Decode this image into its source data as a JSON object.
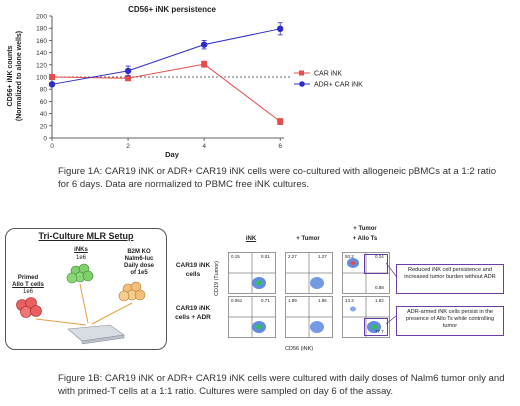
{
  "chart_data": {
    "type": "line",
    "title": "CD56+ iNK persistence",
    "xlabel": "Day",
    "ylabel_line1": "CD56+ iNK counts",
    "ylabel_line2": "(Normalized to alone wells)",
    "x": [
      0,
      2,
      4,
      6
    ],
    "xticks": [
      0,
      2,
      4,
      6
    ],
    "xlim": [
      0,
      6.1
    ],
    "ylim": [
      0,
      200
    ],
    "yticks": [
      0,
      20,
      40,
      60,
      80,
      100,
      120,
      140,
      160,
      180,
      200
    ],
    "reference_line": 100,
    "legend_position": "right",
    "series": [
      {
        "name": "CAR iNK",
        "values": [
          100,
          98,
          121,
          27
        ],
        "errors": [
          3,
          4,
          5,
          5
        ],
        "color": "#e74c4c",
        "marker": "square"
      },
      {
        "name": "ADR+ CAR iNK",
        "values": [
          88,
          110,
          153,
          179
        ],
        "errors": [
          3,
          8,
          7,
          10
        ],
        "color": "#2c2ccc",
        "marker": "circle"
      }
    ]
  },
  "captions": {
    "fig1a": "Figure 1A: CAR19 iNK or ADR+ CAR19 iNK cells were co-cultured with allogeneic pBMCs at a 1:2 ratio for 6 days. Data are normalized to PBMC free iNK cultures.",
    "fig1b": "Figure 1B: CAR19 iNK or ADR+ CAR19 iNK cells were cultured with daily doses of Nalm6 tumor only and with primed-T cells at a 1:1 ratio. Cultures were sampled on day 6 of the assay."
  },
  "setup": {
    "title": "Tri-Culture MLR Setup",
    "inks_label": "iNKs",
    "inks_count": "1e6",
    "tumor_line1": "B2M KO",
    "tumor_line2": "Nalm6-luc",
    "tumor_line3": "Daily dose",
    "tumor_line4": "of 1e5",
    "tcells_line1": "Primed",
    "tcells_line2": "Allo T cells",
    "tcells_count": "1e6"
  },
  "flow": {
    "col_ink": "iNK",
    "col_tumor": "+ Tumor",
    "col_allo_top": "+ Tumor",
    "col_allo_bottom": "+ Allo Ts",
    "row1_line1": "CAR19 iNK",
    "row1_line2": "cells",
    "row2_line1": "CAR19 iNK",
    "row2_line2": "cells + ADR",
    "yaxis": "CD19 (Tumor)",
    "xaxis": "CD56 (iNK)",
    "note1": "Reduced iNK cell persistence and increased tumor burden without ADR",
    "note2": "ADR-armed iNK cells persist in the presence of Allo Ts while controlling tumor",
    "values": {
      "r1c1_tl": "0.15",
      "r1c1_tr": "0.01",
      "r1c2_tl": "2.27",
      "r1c2_tr": "1.27",
      "r1c3_tl": "93.2",
      "r1c3_tr": "0.24",
      "r1c3_br": "0.88",
      "r2c1_tl": "0.061",
      "r2c1_tr": "0.71",
      "r2c2_tl": "1.89",
      "r2c2_tr": "1.86",
      "r2c3_tl": "13.2",
      "r2c3_tr": "1.82",
      "r2c3_br": "77.7"
    }
  }
}
